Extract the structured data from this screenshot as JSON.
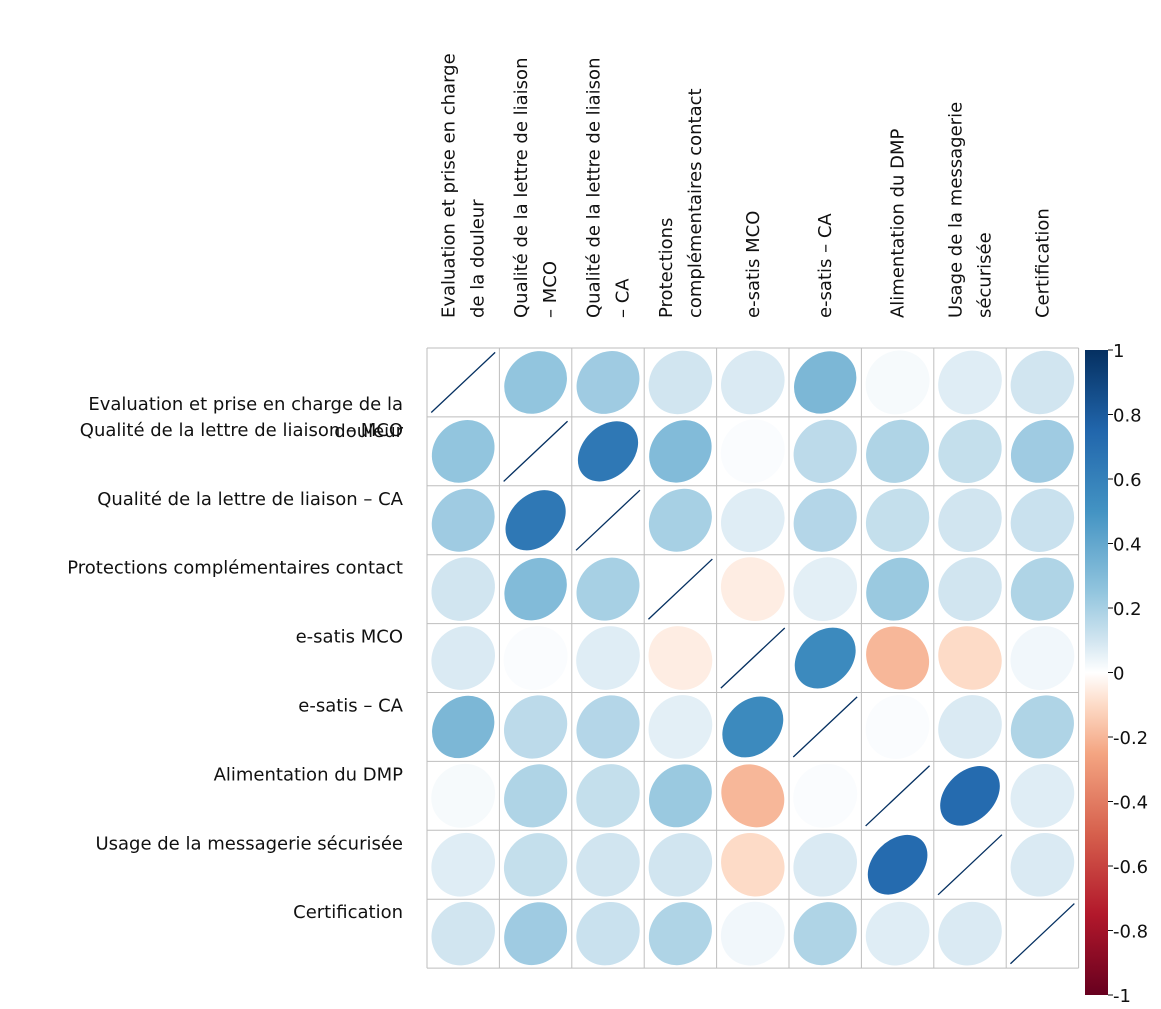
{
  "chart_data": {
    "type": "heatmap",
    "subtype": "correlation-ellipse",
    "title": "",
    "variables": [
      "Evaluation et prise en charge de la douleur",
      "Qualité de la lettre de liaison – MCO",
      "Qualité de la lettre de liaison – CA",
      "Protections complémentaires contact",
      "e-satis MCO",
      "e-satis – CA",
      "Alimentation du DMP",
      "Usage de la messagerie sécurisée",
      "Certification"
    ],
    "column_labels": [
      [
        "Evaluation et prise en charge",
        "de la douleur"
      ],
      [
        "Qualité de la lettre de liaison",
        "– MCO"
      ],
      [
        "Qualité de la lettre de liaison",
        "– CA"
      ],
      [
        "Protections",
        "complémentaires contact"
      ],
      [
        "e-satis MCO"
      ],
      [
        "e-satis – CA"
      ],
      [
        "Alimentation du DMP"
      ],
      [
        "Usage de la messagerie",
        "sécurisée"
      ],
      [
        "Certification"
      ]
    ],
    "row_labels": [
      [
        "Evaluation et prise en charge de la",
        "douleur"
      ],
      [
        "Qualité de la lettre de liaison – MCO"
      ],
      [
        "Qualité de la lettre de liaison – CA"
      ],
      [
        "Protections complémentaires contact"
      ],
      [
        "e-satis MCO"
      ],
      [
        "e-satis – CA"
      ],
      [
        "Alimentation du DMP"
      ],
      [
        "Usage de la messagerie sécurisée"
      ],
      [
        "Certification"
      ]
    ],
    "matrix": [
      [
        1.0,
        0.25,
        0.22,
        0.1,
        0.08,
        0.32,
        0.02,
        0.07,
        0.1
      ],
      [
        0.25,
        1.0,
        0.65,
        0.3,
        0.01,
        0.15,
        0.18,
        0.13,
        0.22
      ],
      [
        0.22,
        0.65,
        1.0,
        0.2,
        0.07,
        0.17,
        0.13,
        0.1,
        0.12
      ],
      [
        0.1,
        0.3,
        0.2,
        1.0,
        -0.05,
        0.06,
        0.23,
        0.1,
        0.18
      ],
      [
        0.08,
        0.01,
        0.07,
        -0.05,
        1.0,
        0.55,
        -0.2,
        -0.1,
        0.03
      ],
      [
        0.32,
        0.15,
        0.17,
        0.06,
        0.55,
        1.0,
        0.01,
        0.08,
        0.18
      ],
      [
        0.02,
        0.18,
        0.13,
        0.23,
        -0.2,
        0.01,
        1.0,
        0.72,
        0.07
      ],
      [
        0.07,
        0.13,
        0.1,
        0.1,
        -0.1,
        0.08,
        0.72,
        1.0,
        0.08
      ],
      [
        0.1,
        0.22,
        0.12,
        0.18,
        0.03,
        0.18,
        0.07,
        0.08,
        1.0
      ]
    ],
    "colorbar": {
      "range": [
        -1,
        1
      ],
      "ticks": [
        "1",
        "0.8",
        "0.6",
        "0.4",
        "0.2",
        "0",
        "-0.2",
        "-0.4",
        "-0.6",
        "-0.8",
        "-1"
      ],
      "tick_values": [
        1,
        0.8,
        0.6,
        0.4,
        0.2,
        0,
        -0.2,
        -0.4,
        -0.6,
        -0.8,
        -1
      ],
      "color_stops": [
        [
          -1.0,
          "#67001F"
        ],
        [
          -0.75,
          "#B2182B"
        ],
        [
          -0.5,
          "#D6604D"
        ],
        [
          -0.25,
          "#F4A582"
        ],
        [
          -0.1,
          "#FDDBC7"
        ],
        [
          0.0,
          "#FFFFFF"
        ],
        [
          0.1,
          "#D1E5F0"
        ],
        [
          0.25,
          "#92C5DE"
        ],
        [
          0.5,
          "#4393C3"
        ],
        [
          0.75,
          "#2166AC"
        ],
        [
          1.0,
          "#053061"
        ]
      ]
    },
    "grid_color": "#BEBEBE",
    "xlabel": "",
    "ylabel": ""
  }
}
